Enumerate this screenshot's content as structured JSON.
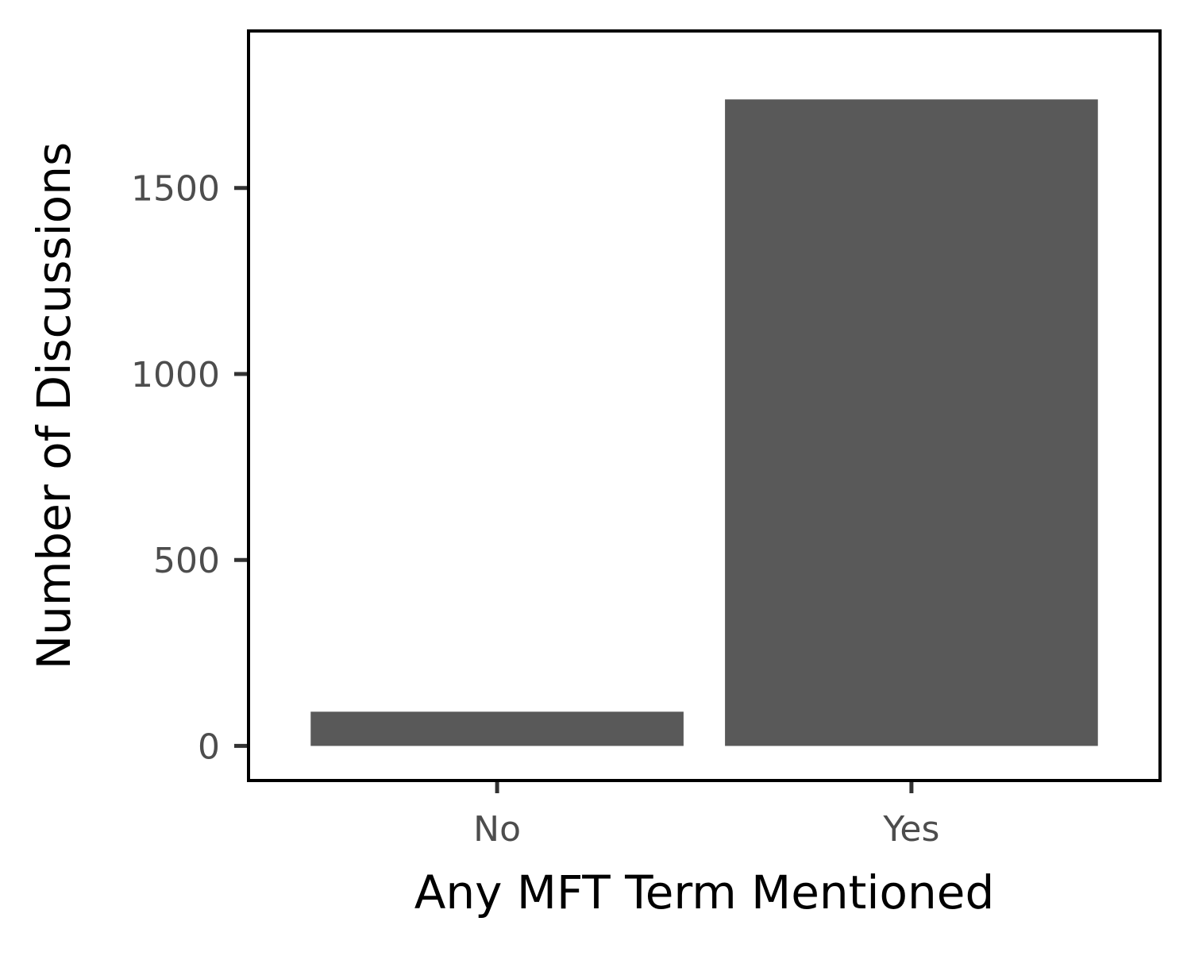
{
  "chart_data": {
    "type": "bar",
    "categories": [
      "No",
      "Yes"
    ],
    "values": [
      92,
      1738
    ],
    "xlabel": "Any MFT Term Mentioned",
    "ylabel": "Number of Discussions",
    "yticks": [
      0,
      500,
      1000,
      1500
    ],
    "ylim": [
      -93,
      1922
    ],
    "bar_color": "#595959",
    "grid": false,
    "legend": "none"
  }
}
